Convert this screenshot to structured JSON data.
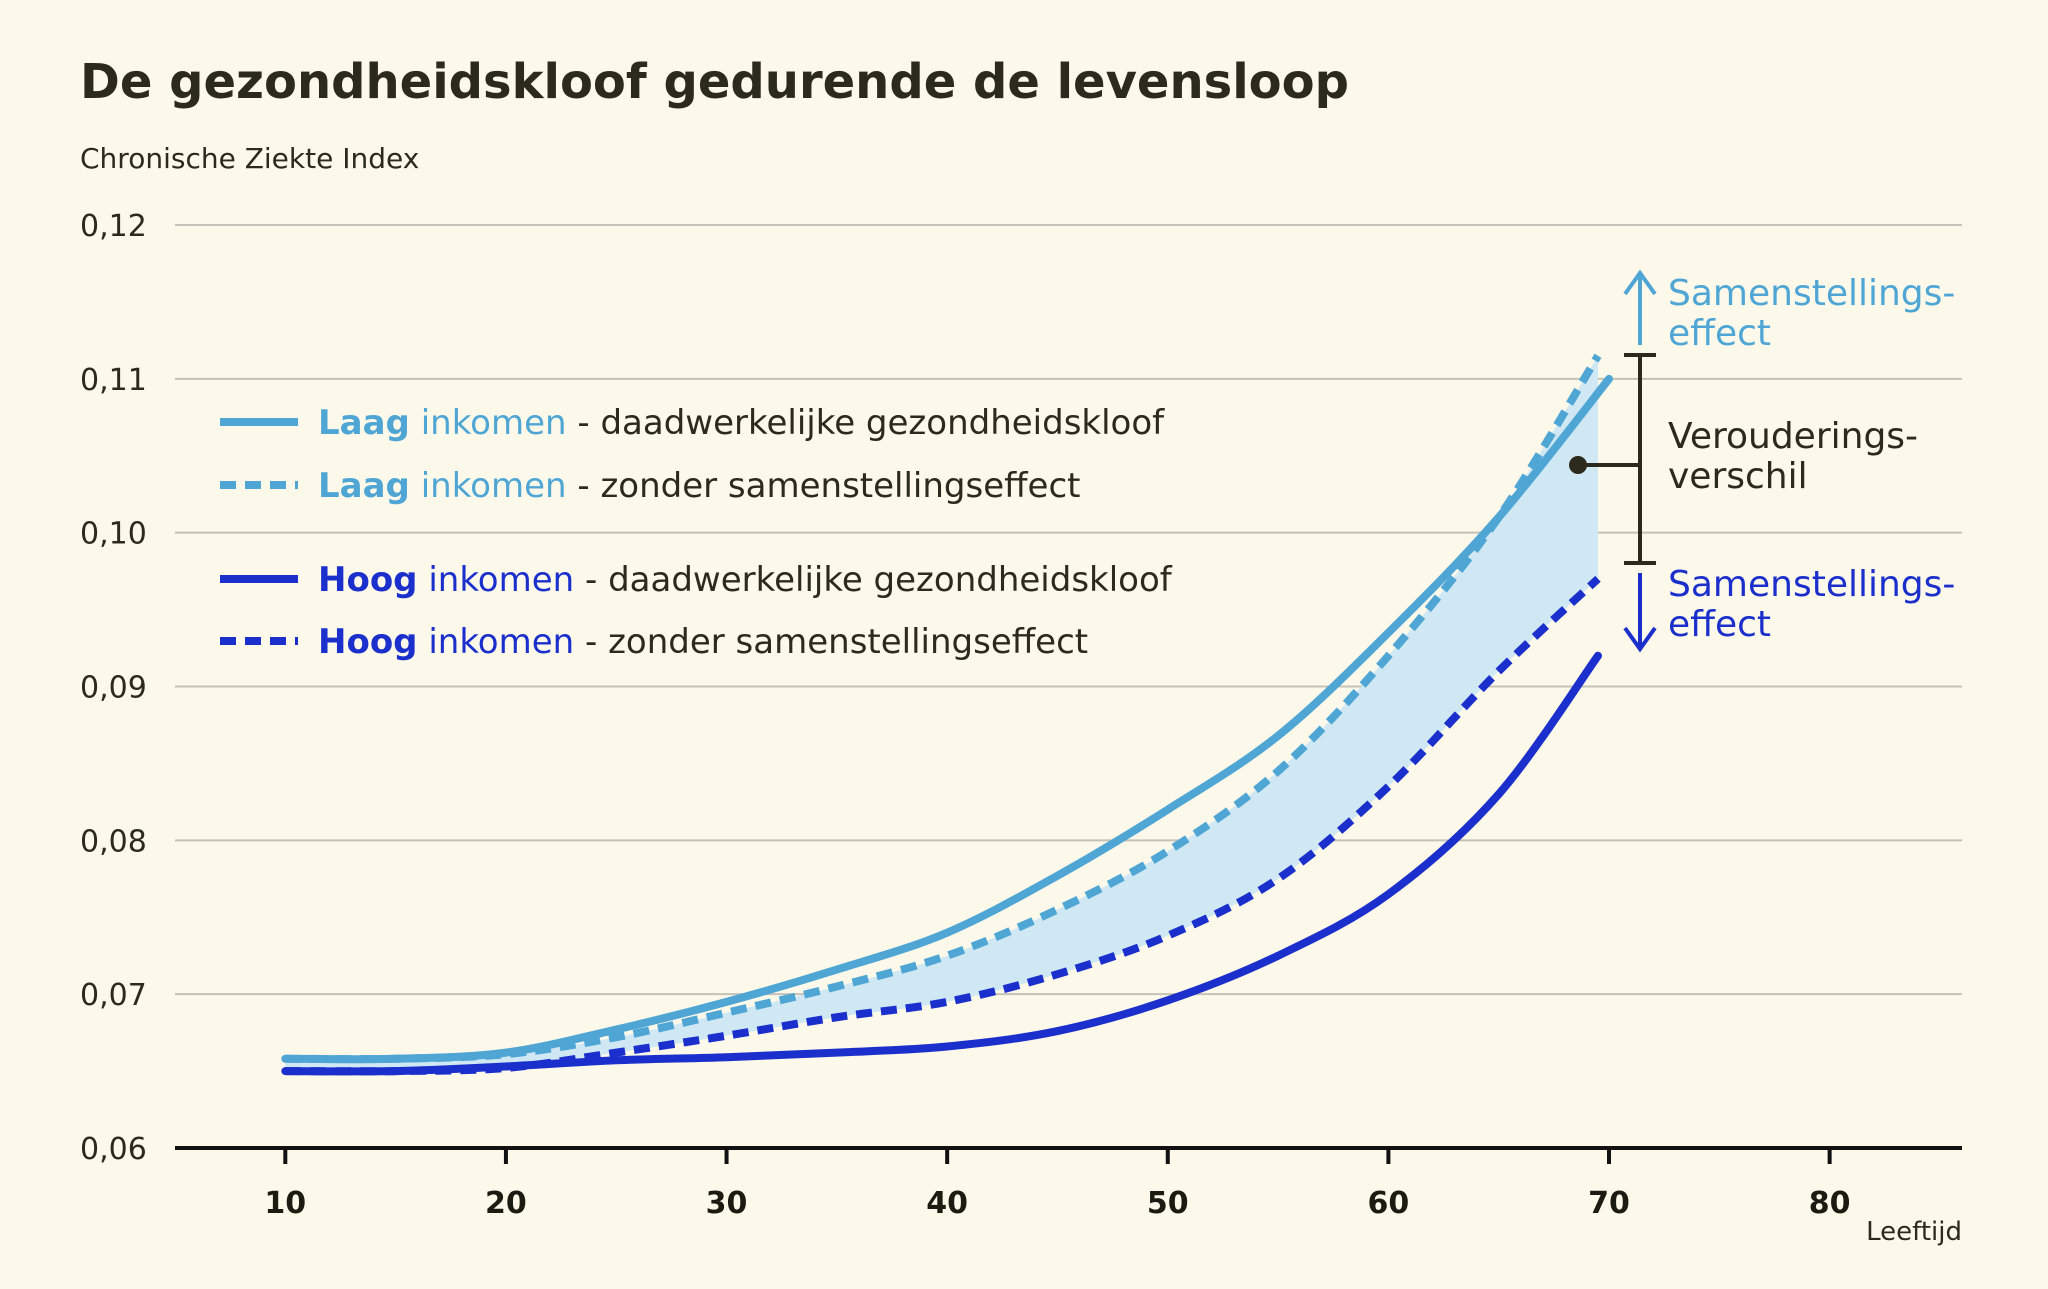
{
  "chart_data": {
    "type": "line",
    "title": "De gezondheidskloof gedurende de levensloop",
    "ylabel": "Chronische Ziekte Index",
    "xlabel": "Leeftijd",
    "xlim": [
      5,
      86
    ],
    "ylim": [
      0.06,
      0.12
    ],
    "xticks": [
      10,
      20,
      30,
      40,
      50,
      60,
      70,
      80
    ],
    "xtick_labels": [
      "10",
      "20",
      "30",
      "40",
      "50",
      "60",
      "70",
      "80"
    ],
    "yticks": [
      0.06,
      0.07,
      0.08,
      0.09,
      0.1,
      0.11,
      0.12
    ],
    "ytick_labels": [
      "0,06",
      "0,07",
      "0,08",
      "0,09",
      "0,10",
      "0,11",
      "0,12"
    ],
    "grid": true,
    "legend_position": "top-left",
    "colors": {
      "low": "#4fa6d5",
      "high": "#1a2fcc",
      "band": "#cfe8f4",
      "dark": "#2b2a1c"
    },
    "series": [
      {
        "key": "low_actual",
        "group": "low",
        "dashed": false,
        "x": [
          10,
          15,
          20,
          25,
          30,
          35,
          40,
          45,
          50,
          55,
          60,
          65,
          70
        ],
        "y": [
          0.0658,
          0.0658,
          0.0662,
          0.0677,
          0.0695,
          0.0716,
          0.074,
          0.0777,
          0.082,
          0.0868,
          0.0935,
          0.101,
          0.11
        ]
      },
      {
        "key": "low_no_comp",
        "group": "low",
        "dashed": true,
        "x": [
          10,
          15,
          20,
          25,
          30,
          35,
          40,
          45,
          50,
          55,
          60,
          65,
          69.5
        ],
        "y": [
          0.0658,
          0.0658,
          0.0661,
          0.0672,
          0.0688,
          0.0705,
          0.0725,
          0.0755,
          0.0793,
          0.0845,
          0.092,
          0.101,
          0.1115
        ]
      },
      {
        "key": "high_no_comp",
        "group": "high",
        "dashed": true,
        "x": [
          10,
          15,
          20,
          25,
          30,
          35,
          40,
          45,
          50,
          55,
          60,
          65,
          69.5
        ],
        "y": [
          0.065,
          0.065,
          0.0652,
          0.0662,
          0.0673,
          0.0685,
          0.0695,
          0.0713,
          0.0738,
          0.0775,
          0.0835,
          0.091,
          0.097
        ]
      },
      {
        "key": "high_actual",
        "group": "high",
        "dashed": false,
        "x": [
          10,
          15,
          20,
          25,
          30,
          35,
          40,
          45,
          50,
          55,
          60,
          65,
          69.5
        ],
        "y": [
          0.065,
          0.065,
          0.0653,
          0.0657,
          0.0659,
          0.0662,
          0.0666,
          0.0676,
          0.0696,
          0.0725,
          0.0765,
          0.083,
          0.092
        ]
      }
    ],
    "legend": [
      {
        "group": "low",
        "dashed": false,
        "bold": "Laag",
        "word": "inkomen",
        "rest": "- daadwerkelijke gezondheidskloof"
      },
      {
        "group": "low",
        "dashed": true,
        "bold": "Laag",
        "word": "inkomen",
        "rest": "- zonder samenstellingseffect"
      },
      {
        "group": "high",
        "dashed": false,
        "bold": "Hoog",
        "word": "inkomen",
        "rest": "- daadwerkelijke gezondheidskloof"
      },
      {
        "group": "high",
        "dashed": true,
        "bold": "Hoog",
        "word": "inkomen",
        "rest": "- zonder samenstellingseffect"
      }
    ],
    "annotations": {
      "top": [
        "Samenstellings-",
        "effect"
      ],
      "middle": [
        "Verouderings-",
        "verschil"
      ],
      "bottom": [
        "Samenstellings-",
        "effect"
      ]
    }
  }
}
